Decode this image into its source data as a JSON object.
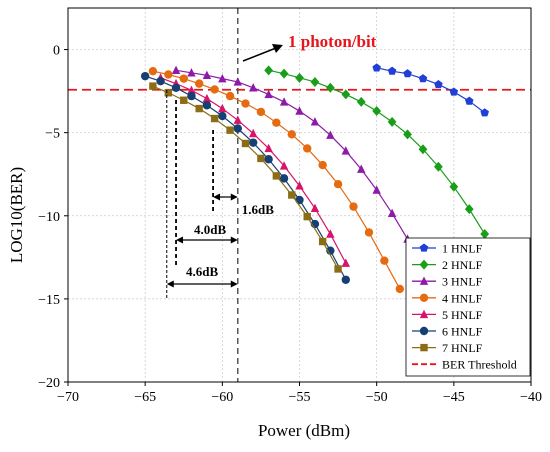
{
  "chart_data": {
    "type": "line",
    "xlabel": "Power (dBm)",
    "ylabel": "LOG10(BER)",
    "xlim": [
      -70,
      -40
    ],
    "ylim": [
      -20,
      2.5
    ],
    "xticks": [
      -70,
      -65,
      -60,
      -55,
      -50,
      -45,
      -40
    ],
    "yticks": [
      0,
      -5,
      -10,
      -15,
      -20
    ],
    "grid": true,
    "legend_position": "bottom-right",
    "threshold": {
      "name": "BER Threshold",
      "value": -2.42,
      "color": "#e8151b"
    },
    "vertical_line": {
      "x": -59,
      "color": "#555555"
    },
    "annotations": {
      "photon_label": "1 photon/bit",
      "photon_color": "#e8151b",
      "d16": "1.6dB",
      "d40": "4.0dB",
      "d46": "4.6dB"
    },
    "series": [
      {
        "name": "1 HNLF",
        "color": "#1f3fd6",
        "marker": "pentagon",
        "x": [
          -50,
          -49,
          -48,
          -47,
          -46,
          -45,
          -44,
          -43
        ],
        "y": [
          -1.1,
          -1.3,
          -1.45,
          -1.75,
          -2.1,
          -2.55,
          -3.1,
          -3.8
        ]
      },
      {
        "name": "2 HNLF",
        "color": "#1a9e1a",
        "marker": "diamond",
        "x": [
          -57,
          -56,
          -55,
          -54,
          -53,
          -52,
          -51,
          -50,
          -49,
          -48,
          -47,
          -46,
          -45,
          -44,
          -43
        ],
        "y": [
          -1.25,
          -1.45,
          -1.7,
          -1.95,
          -2.3,
          -2.7,
          -3.15,
          -3.7,
          -4.35,
          -5.1,
          -6.0,
          -7.05,
          -8.25,
          -9.6,
          -11.1
        ]
      },
      {
        "name": "3 HNLF",
        "color": "#8e1aa8",
        "marker": "triangle",
        "x": [
          -63,
          -62,
          -61,
          -60,
          -59,
          -58,
          -57,
          -56,
          -55,
          -54,
          -53,
          -52,
          -51,
          -50,
          -49,
          -48
        ],
        "y": [
          -1.25,
          -1.4,
          -1.55,
          -1.75,
          -1.95,
          -2.3,
          -2.7,
          -3.15,
          -3.7,
          -4.35,
          -5.15,
          -6.1,
          -7.2,
          -8.45,
          -9.85,
          -11.4
        ]
      },
      {
        "name": "4 HNLF",
        "color": "#e66a10",
        "marker": "circle",
        "x": [
          -64.5,
          -63.5,
          -62.5,
          -61.5,
          -60.5,
          -59.5,
          -58.5,
          -57.5,
          -56.5,
          -55.5,
          -54.5,
          -53.5,
          -52.5,
          -51.5,
          -50.5,
          -49.5,
          -48.5
        ],
        "y": [
          -1.3,
          -1.5,
          -1.75,
          -2.05,
          -2.4,
          -2.8,
          -3.25,
          -3.75,
          -4.4,
          -5.1,
          -5.95,
          -6.95,
          -8.1,
          -9.45,
          -11.0,
          -12.7,
          -14.4
        ]
      },
      {
        "name": "5 HNLF",
        "color": "#d6146a",
        "marker": "triangle",
        "x": [
          -64,
          -63,
          -62,
          -61,
          -60,
          -59,
          -58,
          -57,
          -56,
          -55,
          -54,
          -53,
          -52
        ],
        "y": [
          -1.7,
          -2.05,
          -2.45,
          -2.95,
          -3.55,
          -4.25,
          -5.05,
          -5.95,
          -7.0,
          -8.2,
          -9.55,
          -11.1,
          -12.85
        ]
      },
      {
        "name": "6 HNLF",
        "color": "#163f73",
        "marker": "circle",
        "x": [
          -65,
          -64,
          -63,
          -62,
          -61,
          -60,
          -59,
          -58,
          -57,
          -56,
          -55,
          -54,
          -53,
          -52
        ],
        "y": [
          -1.6,
          -1.9,
          -2.3,
          -2.8,
          -3.35,
          -4.0,
          -4.75,
          -5.6,
          -6.6,
          -7.75,
          -9.05,
          -10.5,
          -12.1,
          -13.85
        ]
      },
      {
        "name": "7 HNLF",
        "color": "#8a6d14",
        "marker": "square",
        "x": [
          -64.5,
          -63.5,
          -62.5,
          -61.5,
          -60.5,
          -59.5,
          -58.5,
          -57.5,
          -56.5,
          -55.5,
          -54.5,
          -53.5,
          -52.5
        ],
        "y": [
          -2.2,
          -2.6,
          -3.05,
          -3.55,
          -4.15,
          -4.85,
          -5.65,
          -6.55,
          -7.6,
          -8.75,
          -10.05,
          -11.55,
          -13.2
        ]
      }
    ]
  }
}
